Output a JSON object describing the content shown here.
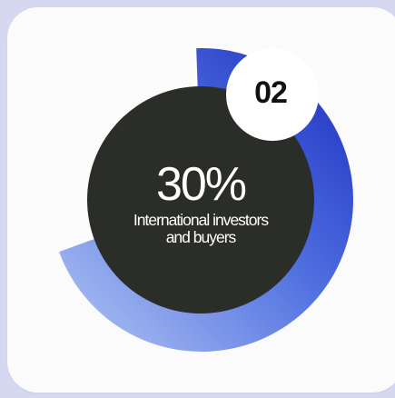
{
  "step_number": "02",
  "stat": {
    "value": "30%",
    "label": "International investors and buyers"
  },
  "ring": {
    "percent": 30,
    "color_start": "#a9bdf0",
    "color_end": "#1f31c4"
  },
  "colors": {
    "background": "#d5d8f0",
    "card": "#fbfbfc",
    "center": "#2b2d28",
    "badge": "#ffffff"
  }
}
